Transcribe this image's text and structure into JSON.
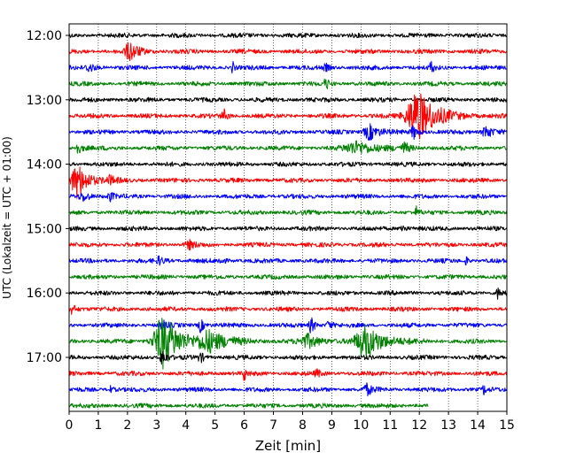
{
  "chart_data": {
    "type": "line",
    "title": "",
    "xlabel": "Zeit  [min]",
    "ylabel": "UTC (Lokalzeit = UTC + 01:00)",
    "xlim": [
      0,
      15
    ],
    "x_ticks": [
      0,
      1,
      2,
      3,
      4,
      5,
      6,
      7,
      8,
      9,
      10,
      11,
      12,
      13,
      14,
      15
    ],
    "y_ticks": [
      "12:00",
      "13:00",
      "14:00",
      "15:00",
      "16:00",
      "17:00"
    ],
    "trace_interval_min": 15,
    "grid": "vertical-dotted",
    "legend": "none",
    "colors": [
      "#000000",
      "#ff0000",
      "#0000ff",
      "#008000"
    ],
    "traces": [
      {
        "start": "12:00",
        "color": "#000000",
        "end_min": 15,
        "events": []
      },
      {
        "start": "12:15",
        "color": "#ff0000",
        "end_min": 15,
        "events": [
          {
            "t": 2.1,
            "amp": 10,
            "dur": 0.25
          }
        ]
      },
      {
        "start": "12:30",
        "color": "#0000ff",
        "end_min": 15,
        "events": [
          {
            "t": 0.7,
            "amp": 5,
            "dur": 0.15
          },
          {
            "t": 5.6,
            "amp": 7,
            "dur": 0.05
          },
          {
            "t": 8.8,
            "amp": 4,
            "dur": 0.1
          },
          {
            "t": 12.4,
            "amp": 8,
            "dur": 0.06
          }
        ]
      },
      {
        "start": "12:45",
        "color": "#008000",
        "end_min": 15,
        "events": [
          {
            "t": 8.8,
            "amp": 7,
            "dur": 0.08
          }
        ]
      },
      {
        "start": "13:00",
        "color": "#000000",
        "end_min": 15,
        "events": []
      },
      {
        "start": "13:15",
        "color": "#ff0000",
        "end_min": 15,
        "events": [
          {
            "t": 5.3,
            "amp": 7,
            "dur": 0.1
          },
          {
            "t": 11.95,
            "amp": 30,
            "dur": 0.5
          }
        ]
      },
      {
        "start": "13:30",
        "color": "#0000ff",
        "end_min": 15,
        "events": [
          {
            "t": 10.3,
            "amp": 9,
            "dur": 0.25
          },
          {
            "t": 11.8,
            "amp": 8,
            "dur": 0.12
          },
          {
            "t": 14.3,
            "amp": 7,
            "dur": 0.2
          }
        ]
      },
      {
        "start": "13:45",
        "color": "#008000",
        "end_min": 15,
        "events": [
          {
            "t": 0.3,
            "amp": 6,
            "dur": 0.15
          },
          {
            "t": 9.9,
            "amp": 7,
            "dur": 0.6
          },
          {
            "t": 11.5,
            "amp": 6,
            "dur": 0.1
          }
        ]
      },
      {
        "start": "14:00",
        "color": "#000000",
        "end_min": 15,
        "events": []
      },
      {
        "start": "14:15",
        "color": "#ff0000",
        "end_min": 15,
        "events": [
          {
            "t": 0.3,
            "amp": 20,
            "dur": 0.3
          },
          {
            "t": 1.4,
            "amp": 4,
            "dur": 0.15
          }
        ]
      },
      {
        "start": "14:30",
        "color": "#0000ff",
        "end_min": 15,
        "events": [
          {
            "t": 0.5,
            "amp": 5,
            "dur": 0.2
          },
          {
            "t": 1.4,
            "amp": 5,
            "dur": 0.1
          }
        ]
      },
      {
        "start": "14:45",
        "color": "#008000",
        "end_min": 15,
        "events": [
          {
            "t": 11.9,
            "amp": 6,
            "dur": 0.05
          }
        ]
      },
      {
        "start": "15:00",
        "color": "#000000",
        "end_min": 15,
        "events": [
          {
            "t": 11.4,
            "amp": 5,
            "dur": 0.1
          }
        ]
      },
      {
        "start": "15:15",
        "color": "#ff0000",
        "end_min": 15,
        "events": [
          {
            "t": 4.1,
            "amp": 5,
            "dur": 0.15
          }
        ]
      },
      {
        "start": "15:30",
        "color": "#0000ff",
        "end_min": 15,
        "events": [
          {
            "t": 3.1,
            "amp": 4,
            "dur": 0.15
          },
          {
            "t": 5.2,
            "amp": 4,
            "dur": 0.1
          },
          {
            "t": 13.6,
            "amp": 6,
            "dur": 0.05
          }
        ]
      },
      {
        "start": "15:45",
        "color": "#008000",
        "end_min": 15,
        "events": []
      },
      {
        "start": "16:00",
        "color": "#000000",
        "end_min": 15,
        "events": [
          {
            "t": 14.7,
            "amp": 6,
            "dur": 0.1
          }
        ]
      },
      {
        "start": "16:15",
        "color": "#ff0000",
        "end_min": 15,
        "events": [
          {
            "t": 0.1,
            "amp": 5,
            "dur": 0.15
          }
        ]
      },
      {
        "start": "16:30",
        "color": "#0000ff",
        "end_min": 15,
        "events": [
          {
            "t": 3.2,
            "amp": 6,
            "dur": 0.1
          },
          {
            "t": 4.5,
            "amp": 8,
            "dur": 0.1
          },
          {
            "t": 8.3,
            "amp": 9,
            "dur": 0.1
          },
          {
            "t": 8.9,
            "amp": 5,
            "dur": 0.1
          }
        ]
      },
      {
        "start": "16:45",
        "color": "#008000",
        "end_min": 15,
        "events": [
          {
            "t": 3.25,
            "amp": 30,
            "dur": 0.45
          },
          {
            "t": 4.8,
            "amp": 12,
            "dur": 0.5
          },
          {
            "t": 8.2,
            "amp": 7,
            "dur": 0.4
          },
          {
            "t": 10.2,
            "amp": 18,
            "dur": 0.5
          }
        ]
      },
      {
        "start": "17:00",
        "color": "#000000",
        "end_min": 15,
        "events": [
          {
            "t": 3.2,
            "amp": 10,
            "dur": 0.1
          },
          {
            "t": 4.5,
            "amp": 6,
            "dur": 0.1
          }
        ]
      },
      {
        "start": "17:15",
        "color": "#ff0000",
        "end_min": 15,
        "events": [
          {
            "t": 6.0,
            "amp": 9,
            "dur": 0.05
          },
          {
            "t": 8.5,
            "amp": 4,
            "dur": 0.1
          }
        ]
      },
      {
        "start": "17:30",
        "color": "#0000ff",
        "end_min": 15,
        "events": [
          {
            "t": 1.4,
            "amp": 4,
            "dur": 0.1
          },
          {
            "t": 10.2,
            "amp": 6,
            "dur": 0.15
          },
          {
            "t": 14.2,
            "amp": 6,
            "dur": 0.05
          }
        ]
      },
      {
        "start": "17:45",
        "color": "#008000",
        "end_min": 12.3,
        "events": []
      }
    ]
  }
}
